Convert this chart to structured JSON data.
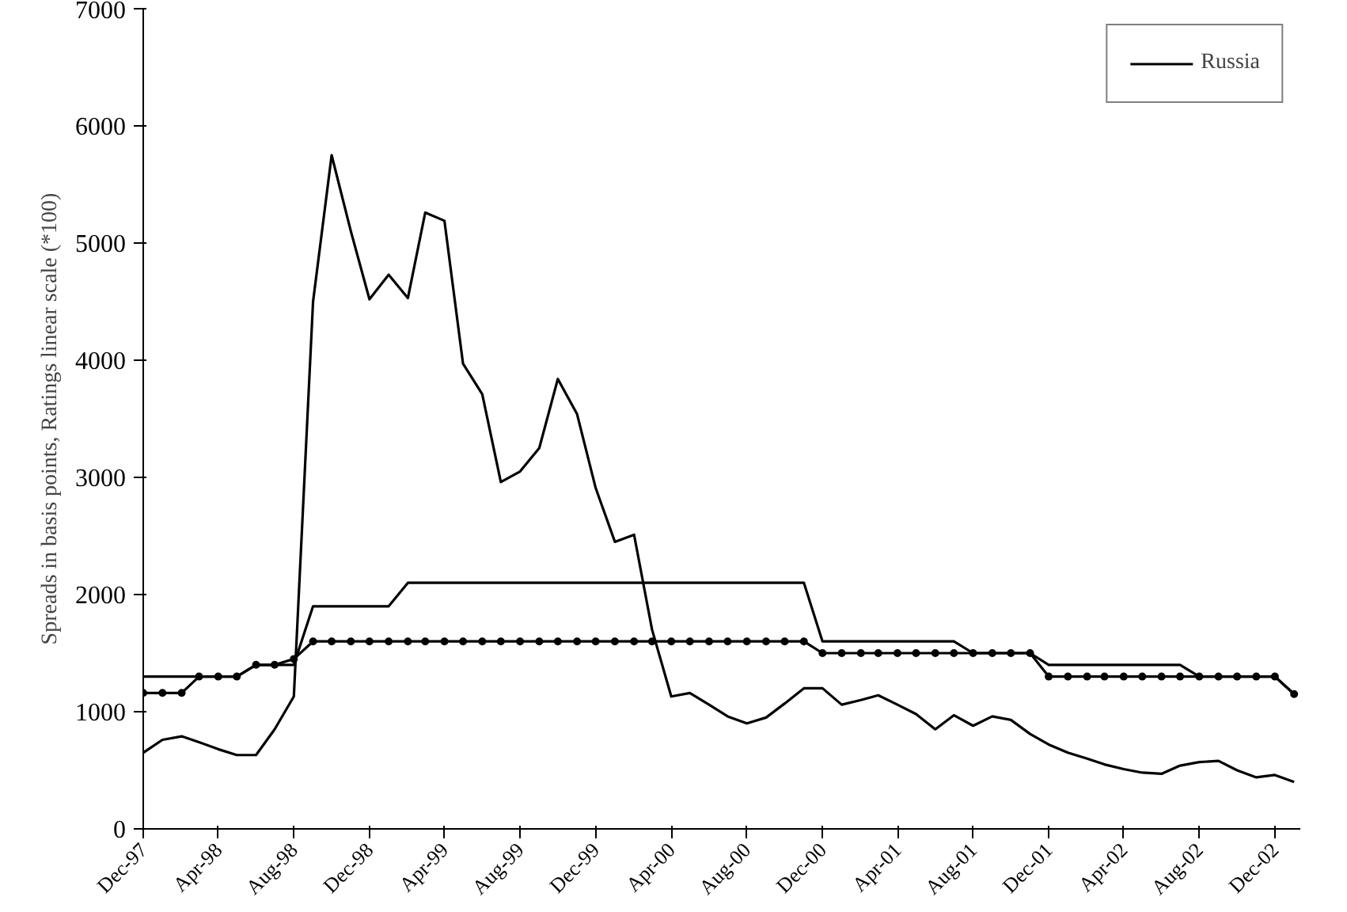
{
  "chart_data": {
    "type": "line",
    "ylabel": "Spreads in basis points, Ratings linear scale (*100)",
    "x": [
      "1997-12",
      "1998-01",
      "1998-02",
      "1998-03",
      "1998-04",
      "1998-05",
      "1998-06",
      "1998-07",
      "1998-08",
      "1998-09",
      "1998-10",
      "1998-11",
      "1998-12",
      "1999-01",
      "1999-02",
      "1999-03",
      "1999-04",
      "1999-05",
      "1999-06",
      "1999-07",
      "1999-08",
      "1999-09",
      "1999-10",
      "1999-11",
      "1999-12",
      "2000-01",
      "2000-02",
      "2000-03",
      "2000-04",
      "2000-05",
      "2000-06",
      "2000-07",
      "2000-08",
      "2000-09",
      "2000-10",
      "2000-11",
      "2000-12",
      "2001-01",
      "2001-02",
      "2001-03",
      "2001-04",
      "2001-05",
      "2001-06",
      "2001-07",
      "2001-08",
      "2001-09",
      "2001-10",
      "2001-11",
      "2001-12",
      "2002-01",
      "2002-02",
      "2002-03",
      "2002-04",
      "2002-05",
      "2002-06",
      "2002-07",
      "2002-08",
      "2002-09",
      "2002-10",
      "2002-11",
      "2002-12",
      "2003-01"
    ],
    "series": [
      {
        "name": "Russia",
        "color": "#000000",
        "marker": "none",
        "values": [
          650,
          760,
          790,
          740,
          680,
          630,
          630,
          850,
          1130,
          4500,
          5750,
          5100,
          4520,
          4730,
          4530,
          5260,
          5190,
          3970,
          3710,
          2960,
          3050,
          3250,
          3840,
          3540,
          2910,
          2450,
          2510,
          1700,
          1130,
          1160,
          1060,
          960,
          900,
          950,
          1070,
          1200,
          1200,
          1060,
          1100,
          1140,
          1060,
          980,
          850,
          970,
          880,
          960,
          930,
          810,
          720,
          650,
          600,
          550,
          510,
          480,
          470,
          540,
          570,
          580,
          500,
          440,
          460,
          400
        ]
      },
      {
        "color": "#000000",
        "marker": "circle",
        "values": [
          1160,
          1160,
          1160,
          1300,
          1300,
          1300,
          1400,
          1400,
          1450,
          1600,
          1600,
          1600,
          1600,
          1600,
          1600,
          1600,
          1600,
          1600,
          1600,
          1600,
          1600,
          1600,
          1600,
          1600,
          1600,
          1600,
          1600,
          1600,
          1600,
          1600,
          1600,
          1600,
          1600,
          1600,
          1600,
          1600,
          1500,
          1500,
          1500,
          1500,
          1500,
          1500,
          1500,
          1500,
          1500,
          1500,
          1500,
          1500,
          1300,
          1300,
          1300,
          1300,
          1300,
          1300,
          1300,
          1300,
          1300,
          1300,
          1300,
          1300,
          1300,
          1150
        ]
      },
      {
        "color": "#000000",
        "marker": "none",
        "values": [
          1300,
          1300,
          1300,
          1300,
          1300,
          1300,
          1400,
          1400,
          1400,
          1900,
          1900,
          1900,
          1900,
          1900,
          2100,
          2100,
          2100,
          2100,
          2100,
          2100,
          2100,
          2100,
          2100,
          2100,
          2100,
          2100,
          2100,
          2100,
          2100,
          2100,
          2100,
          2100,
          2100,
          2100,
          2100,
          2100,
          1600,
          1600,
          1600,
          1600,
          1600,
          1600,
          1600,
          1600,
          1500,
          1500,
          1500,
          1500,
          1400,
          1400,
          1400,
          1400,
          1400,
          1400,
          1400,
          1400,
          1300,
          1300,
          1300,
          1300,
          1300,
          1150
        ]
      }
    ],
    "ylim": [
      0,
      7000
    ],
    "yticks": [
      0,
      1000,
      2000,
      3000,
      4000,
      5000,
      6000,
      7000
    ],
    "xticks": [
      {
        "value": "1997-12",
        "label": "Dec-97"
      },
      {
        "value": "1998-04",
        "label": "Apr-98"
      },
      {
        "value": "1998-08",
        "label": "Aug-98"
      },
      {
        "value": "1998-12",
        "label": "Dec-98"
      },
      {
        "value": "1999-04",
        "label": "Apr-99"
      },
      {
        "value": "1999-08",
        "label": "Aug-99"
      },
      {
        "value": "1999-12",
        "label": "Dec-99"
      },
      {
        "value": "2000-04",
        "label": "Apr-00"
      },
      {
        "value": "2000-08",
        "label": "Aug-00"
      },
      {
        "value": "2000-12",
        "label": "Dec-00"
      },
      {
        "value": "2001-04",
        "label": "Apr-01"
      },
      {
        "value": "2001-08",
        "label": "Aug-01"
      },
      {
        "value": "2001-12",
        "label": "Dec-01"
      },
      {
        "value": "2002-04",
        "label": "Apr-02"
      },
      {
        "value": "2002-08",
        "label": "Aug-02"
      },
      {
        "value": "2002-12",
        "label": "Dec-02"
      }
    ],
    "xlim": [
      "1997-12",
      "2003-01"
    ],
    "grid": false,
    "legend": "top right",
    "line_style": "solid"
  }
}
